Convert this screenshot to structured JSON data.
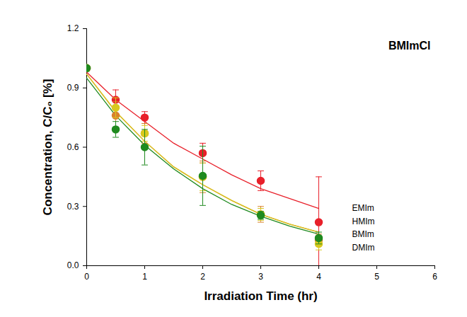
{
  "chart_data": {
    "type": "scatter",
    "title": "BMImCl",
    "x_label": "Irradiation Time (hr)",
    "y_label": "Concentration, C/C₀ [%]",
    "x": [
      0,
      0.5,
      1,
      2,
      3,
      4
    ],
    "fit_x": [
      0,
      0.5,
      1,
      1.5,
      2,
      2.5,
      3,
      3.5,
      4
    ],
    "series": [
      {
        "name": "EMIm",
        "color": "#e8202a",
        "marker": "circle",
        "values": [
          1.0,
          0.84,
          0.75,
          0.57,
          0.43,
          0.22
        ],
        "errors": [
          null,
          0.05,
          0.03,
          0.05,
          0.05,
          0.23
        ],
        "fit": [
          0.98,
          0.84,
          0.73,
          0.62,
          0.54,
          0.46,
          0.39,
          0.34,
          0.29
        ]
      },
      {
        "name": "HMIm",
        "color": "#d9822b",
        "marker": "circle",
        "values": [
          1.0,
          0.76,
          0.67,
          0.45,
          0.26,
          0.13
        ],
        "errors": [
          null,
          0.07,
          0.05,
          0.08,
          0.04,
          0.03
        ],
        "fit": [
          0.97,
          0.78,
          0.63,
          0.5,
          0.41,
          0.33,
          0.26,
          0.21,
          0.17
        ]
      },
      {
        "name": "BMIm",
        "color": "#d8c81e",
        "marker": "circle",
        "values": [
          1.0,
          0.8,
          0.67,
          0.45,
          0.26,
          0.11
        ],
        "errors": [
          null,
          0.05,
          0.04,
          0.07,
          0.03,
          0.03
        ],
        "fit": [
          0.97,
          0.78,
          0.63,
          0.5,
          0.41,
          0.33,
          0.26,
          0.21,
          0.17
        ]
      },
      {
        "name": "DMIm",
        "color": "#1f8a1f",
        "marker": "circle",
        "values": [
          1.0,
          0.69,
          0.6,
          0.455,
          0.255,
          0.14
        ],
        "errors": [
          null,
          0.04,
          0.09,
          0.15,
          0.02,
          0.03
        ],
        "fit": [
          0.95,
          0.76,
          0.61,
          0.49,
          0.39,
          0.31,
          0.25,
          0.2,
          0.16
        ]
      }
    ],
    "xlim": [
      0,
      6
    ],
    "ylim": [
      0,
      1.2
    ],
    "xticks": [
      0,
      1,
      2,
      3,
      4,
      5,
      6
    ],
    "yticks": [
      {
        "value": 0,
        "label": "0.0"
      },
      {
        "value": 0.3,
        "label": "0.3"
      },
      {
        "value": 0.6,
        "label": "0.6"
      },
      {
        "value": 0.9,
        "label": "0.9"
      },
      {
        "value": 1.2,
        "label": "1.2"
      }
    ],
    "grid": false,
    "legend": "bottom-right"
  }
}
